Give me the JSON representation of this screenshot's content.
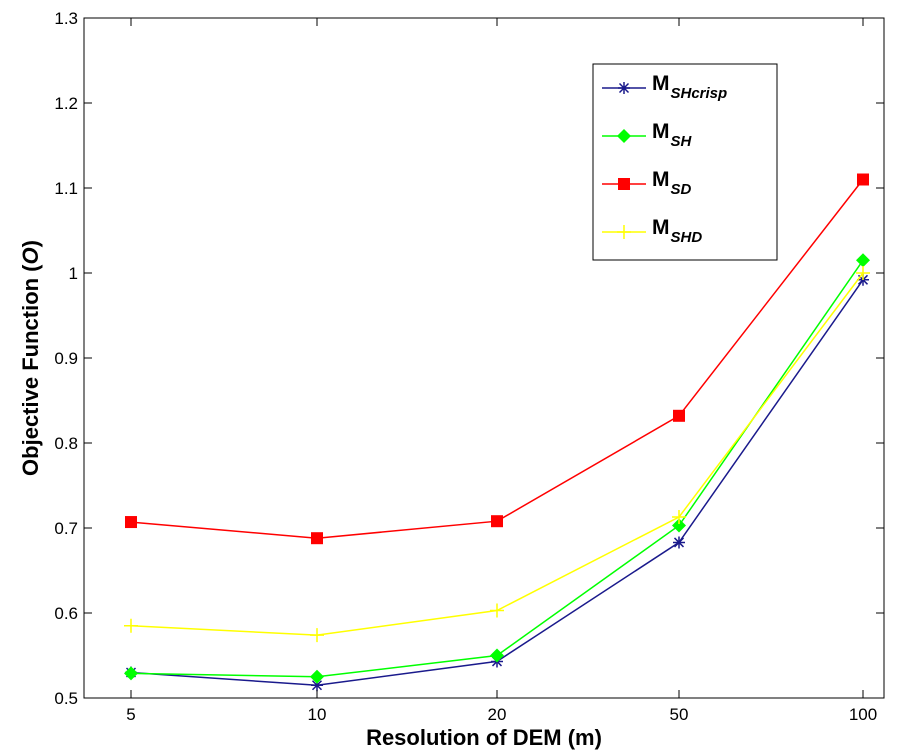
{
  "chart_data": {
    "type": "line",
    "xlabel": "Resolution of DEM (m)",
    "ylabel_prefix": "Objective Function (",
    "ylabel_symbol": "O",
    "ylabel_suffix": ")",
    "categories": [
      "5",
      "10",
      "20",
      "50",
      "100"
    ],
    "ylim": [
      0.5,
      1.3
    ],
    "yticks": [
      "0.5",
      "0.6",
      "0.7",
      "0.8",
      "0.9",
      "1",
      "1.1",
      "1.2",
      "1.3"
    ],
    "grid": false,
    "legend_position": "top-right",
    "series": [
      {
        "name": "M",
        "sub": "SHcrisp",
        "color": "#1a1a8c",
        "marker": "asterisk",
        "values": [
          0.53,
          0.515,
          0.543,
          0.683,
          0.992
        ]
      },
      {
        "name": "M",
        "sub": "SH",
        "color": "#00ff00",
        "marker": "diamond",
        "values": [
          0.529,
          0.525,
          0.55,
          0.703,
          1.015
        ]
      },
      {
        "name": "M",
        "sub": "SD",
        "color": "#ff0000",
        "marker": "square",
        "values": [
          0.707,
          0.688,
          0.708,
          0.832,
          1.11
        ]
      },
      {
        "name": "M",
        "sub": "SHD",
        "color": "#ffff00",
        "marker": "plus",
        "values": [
          0.585,
          0.574,
          0.603,
          0.713,
          1.0
        ]
      }
    ]
  }
}
